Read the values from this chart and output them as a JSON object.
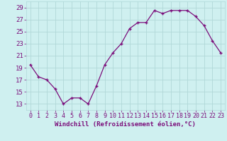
{
  "x": [
    0,
    1,
    2,
    3,
    4,
    5,
    6,
    7,
    8,
    9,
    10,
    11,
    12,
    13,
    14,
    15,
    16,
    17,
    18,
    19,
    20,
    21,
    22,
    23
  ],
  "y": [
    19.5,
    17.5,
    17.0,
    15.5,
    13.0,
    14.0,
    14.0,
    13.0,
    16.0,
    19.5,
    21.5,
    23.0,
    25.5,
    26.5,
    26.5,
    28.5,
    28.0,
    28.5,
    28.5,
    28.5,
    27.5,
    26.0,
    23.5,
    21.5
  ],
  "xlim": [
    -0.5,
    23.5
  ],
  "ylim": [
    12,
    30
  ],
  "yticks": [
    13,
    15,
    17,
    19,
    21,
    23,
    25,
    27,
    29
  ],
  "xticks": [
    0,
    1,
    2,
    3,
    4,
    5,
    6,
    7,
    8,
    9,
    10,
    11,
    12,
    13,
    14,
    15,
    16,
    17,
    18,
    19,
    20,
    21,
    22,
    23
  ],
  "xlabel": "Windchill (Refroidissement éolien,°C)",
  "line_color": "#7b0e7b",
  "marker": "+",
  "bg_color": "#cff0f0",
  "grid_color": "#b0d8d8",
  "tick_color": "#7b0e7b",
  "xlabel_color": "#7b0e7b",
  "tick_fontsize": 6.0,
  "xlabel_fontsize": 6.5
}
